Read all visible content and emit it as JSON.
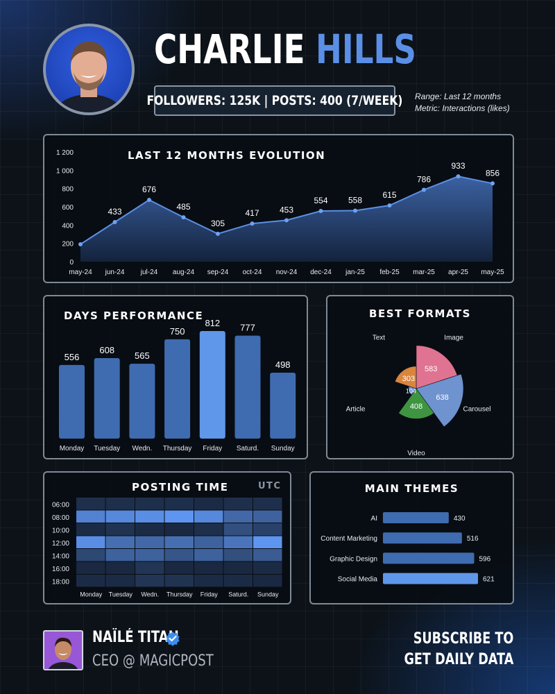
{
  "header": {
    "name_first": "CHARLIE",
    "name_last": "HILLS",
    "stats": "FOLLOWERS: 125K | POSTS: 400 (7/WEEK)",
    "range": "Range:  Last 12 months",
    "metric": "Metric: Interactions (likes)"
  },
  "colors": {
    "accent": "#5b8fe6",
    "bar": "#3f6cb0",
    "bar_highlight": "#5f97ea",
    "panel_border": "#7f8a96"
  },
  "chart_data": [
    {
      "type": "area",
      "title": "LAST 12 MONTHS EVOLUTION",
      "categories": [
        "may-24",
        "jun-24",
        "jul-24",
        "aug-24",
        "sep-24",
        "oct-24",
        "nov-24",
        "dec-24",
        "jan-25",
        "feb-25",
        "mar-25",
        "apr-25",
        "may-25"
      ],
      "values": [
        190,
        433,
        676,
        485,
        305,
        417,
        453,
        554,
        558,
        615,
        786,
        933,
        856
      ],
      "data_labels": [
        "",
        "433",
        "676",
        "485",
        "305",
        "417",
        "453",
        "554",
        "558",
        "615",
        "786",
        "933",
        "856"
      ],
      "yticks": [
        "0",
        "200",
        "400",
        "600",
        "800",
        "1 000",
        "1 200"
      ],
      "ylim": [
        0,
        1200
      ],
      "grid": false
    },
    {
      "type": "bar",
      "title": "DAYS PERFORMANCE",
      "categories": [
        "Monday",
        "Tuesday",
        "Wedn.",
        "Thursday",
        "Friday",
        "Saturd.",
        "Sunday"
      ],
      "values": [
        556,
        608,
        565,
        750,
        812,
        777,
        498
      ],
      "highlight": "Friday"
    },
    {
      "type": "pie",
      "title": "BEST FORMATS",
      "variant": "polar-area",
      "slices": [
        {
          "label": "Image",
          "value": 583,
          "color": "#e07391"
        },
        {
          "label": "Carousel",
          "value": 638,
          "color": "#6e93cf"
        },
        {
          "label": "Video",
          "value": 408,
          "color": "#3f9441"
        },
        {
          "label": "Article",
          "value": 104,
          "color": "#6f97d8"
        },
        {
          "label": "Text",
          "value": 303,
          "color": "#d8853e"
        }
      ]
    },
    {
      "type": "heatmap",
      "title": "POSTING TIME",
      "badge": "UTC",
      "rows": [
        "06:00",
        "08:00",
        "10:00",
        "12:00",
        "14:00",
        "16:00",
        "18:00"
      ],
      "cols": [
        "Monday",
        "Tuesday",
        "Wedn.",
        "Thursday",
        "Friday",
        "Saturd.",
        "Sunday"
      ],
      "intensity": [
        [
          0.15,
          0.15,
          0.15,
          0.15,
          0.12,
          0.15,
          0.15
        ],
        [
          0.8,
          0.85,
          0.9,
          0.95,
          0.85,
          0.6,
          0.55
        ],
        [
          0.12,
          0.18,
          0.12,
          0.1,
          0.15,
          0.4,
          0.3
        ],
        [
          0.9,
          0.65,
          0.6,
          0.65,
          0.55,
          0.7,
          0.95
        ],
        [
          0.35,
          0.55,
          0.55,
          0.45,
          0.55,
          0.4,
          0.5
        ],
        [
          0.1,
          0.1,
          0.2,
          0.1,
          0.1,
          0.1,
          0.12
        ],
        [
          0.12,
          0.12,
          0.2,
          0.18,
          0.12,
          0.12,
          0.1
        ]
      ]
    },
    {
      "type": "bar",
      "orientation": "horizontal",
      "title": "MAIN THEMES",
      "categories": [
        "AI",
        "Content Marketing",
        "Graphic Design",
        "Social Media"
      ],
      "values": [
        430,
        516,
        596,
        621
      ]
    }
  ],
  "footer": {
    "name": "NAÏLÉ TITAH",
    "role": "CEO @ MAGICPOST",
    "cta_line1": "SUBSCRIBE TO",
    "cta_line2": "GET DAILY DATA"
  }
}
